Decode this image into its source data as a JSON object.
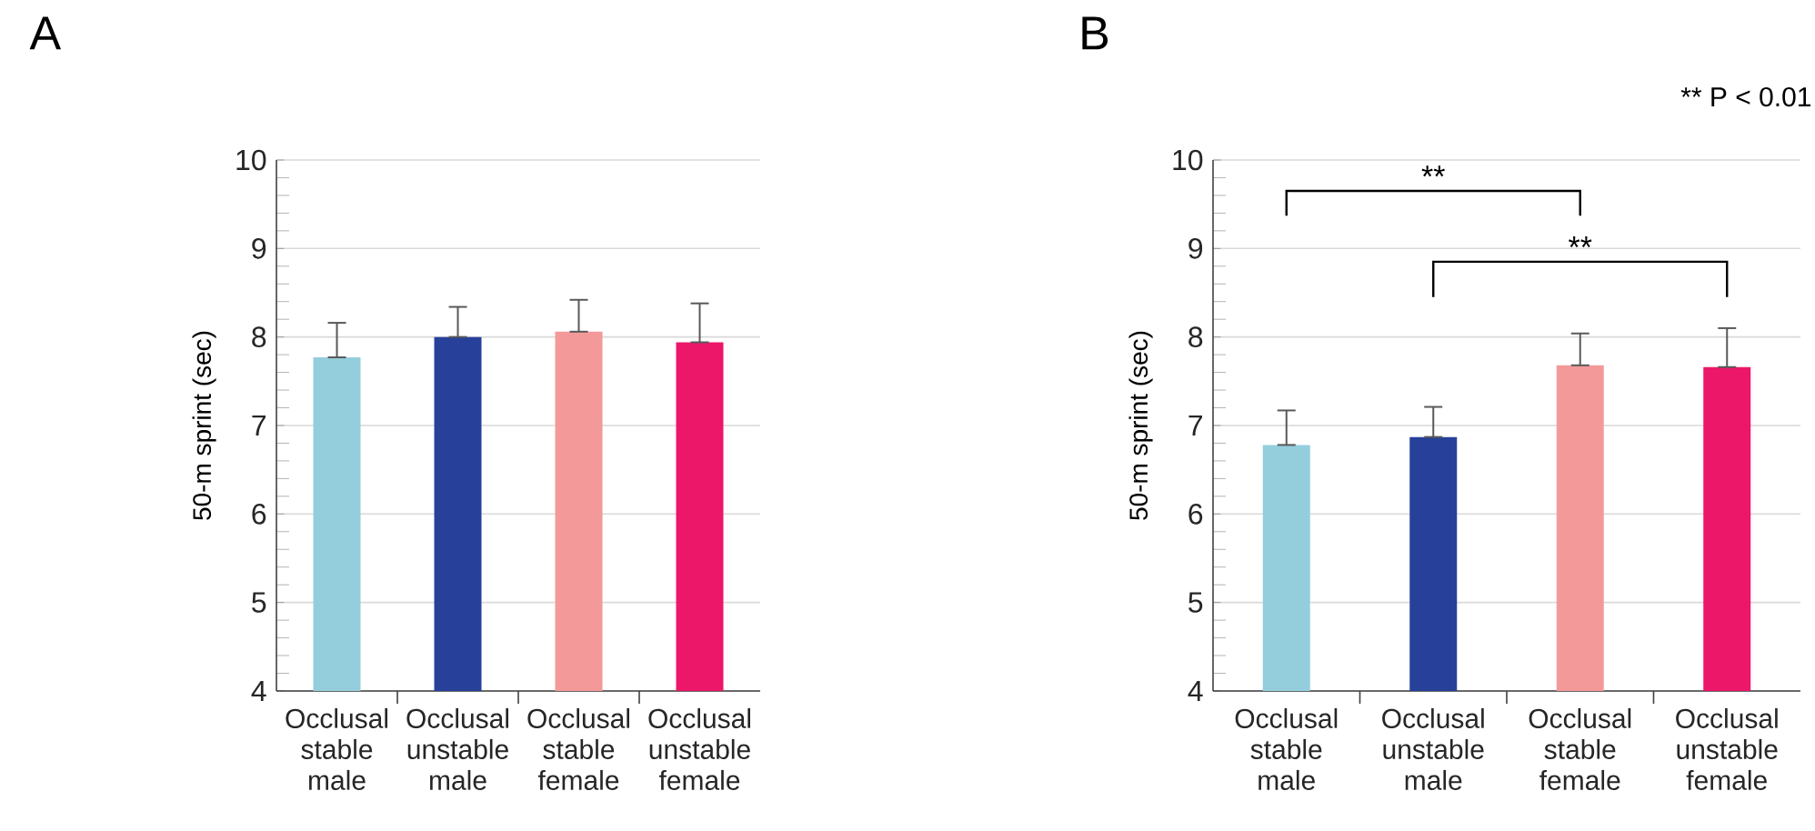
{
  "chart_data": [
    {
      "type": "bar",
      "title": "A",
      "ylabel": "50-m sprint (sec)",
      "categories": [
        "Occlusal stable male",
        "Occlusal unstable male",
        "Occlusal stable female",
        "Occlusal unstable female"
      ],
      "values": [
        7.77,
        8.0,
        8.06,
        7.94
      ],
      "errors": [
        [
          7.77,
          8.16
        ],
        [
          8.0,
          8.34
        ],
        [
          8.06,
          8.42
        ],
        [
          7.94,
          8.38
        ]
      ],
      "colors": [
        "#94cedd",
        "#27409a",
        "#f4999a",
        "#ec1769"
      ],
      "ylim": [
        4,
        10
      ],
      "yticks": [
        4,
        5,
        6,
        7,
        8,
        9,
        10
      ],
      "grid": "y"
    },
    {
      "type": "bar",
      "title": "B",
      "ylabel": "50-m sprint (sec)",
      "categories": [
        "Occlusal stable male",
        "Occlusal unstable male",
        "Occlusal stable female",
        "Occlusal unstable female"
      ],
      "values": [
        6.78,
        6.87,
        7.68,
        7.66
      ],
      "errors": [
        [
          6.78,
          7.17
        ],
        [
          6.87,
          7.21
        ],
        [
          7.68,
          8.04
        ],
        [
          7.66,
          8.1
        ]
      ],
      "colors": [
        "#94cedd",
        "#27409a",
        "#f4999a",
        "#ec1769"
      ],
      "ylim": [
        4,
        10
      ],
      "yticks": [
        4,
        5,
        6,
        7,
        8,
        9,
        10
      ],
      "grid": "y",
      "annotations": [
        "** P < 0.01",
        "**",
        "**"
      ]
    }
  ]
}
